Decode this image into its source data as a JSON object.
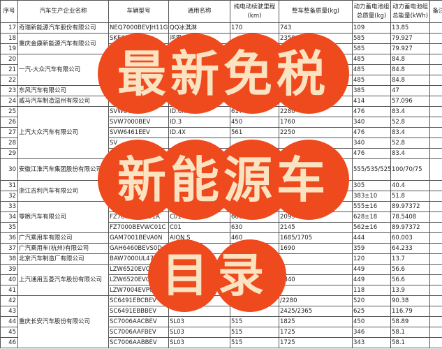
{
  "headers": [
    "序号",
    "汽车生产企业名称",
    "车辆型号",
    "通用名称",
    "纯电动续驶里程(km)",
    "整车整备质量(kg)",
    "动力蓄电池组总质量(kg)",
    "动力蓄电池组总能量(kWh)",
    "备注"
  ],
  "companies": [
    {
      "name": "奇瑞新能源汽车股份有限公司",
      "rows": [
        [
          "17",
          "NEQ7000BEVJH11G",
          "QQ冰淇淋",
          "170",
          "743",
          "109",
          "13.85"
        ]
      ]
    },
    {
      "name": "重庆金康新能源汽车有限公司",
      "rows": [
        [
          "18",
          "SKE6",
          "问界",
          "",
          "2350",
          "585",
          "79.927"
        ],
        [
          "19",
          "",
          "",
          "",
          "",
          "585",
          "79.927"
        ]
      ]
    },
    {
      "name": "一汽-大众汽车有限公司",
      "rows": [
        [
          "20",
          "",
          "",
          "",
          "",
          "485",
          "84.8"
        ],
        [
          "21",
          "",
          "",
          "",
          "",
          "485",
          "84.8"
        ],
        [
          "22",
          "",
          "",
          "",
          "",
          "485",
          "84.8"
        ]
      ]
    },
    {
      "name": "东风汽车有限公司",
      "rows": [
        [
          "23",
          "",
          "",
          "",
          "",
          "385",
          "47"
        ]
      ]
    },
    {
      "name": "威马汽车制造温州有限公司",
      "rows": [
        [
          "24",
          "S",
          "",
          "",
          "",
          "414",
          "57.096"
        ]
      ]
    },
    {
      "name": "上汽大众汽车有限公司",
      "rows": [
        [
          "25",
          "SVW6471",
          "ID.6X",
          "617",
          "2280",
          "476",
          "83.4"
        ],
        [
          "26",
          "SVW7000BEV",
          "ID.3",
          "450",
          "1760",
          "340",
          "52.8"
        ],
        [
          "27",
          "SVW6461EEV",
          "ID.4X",
          "561",
          "2250",
          "476",
          "83.4"
        ],
        [
          "28",
          "SV",
          "",
          "",
          "",
          "340",
          "52.8"
        ],
        [
          "29",
          "",
          "",
          "",
          "",
          "476",
          "83.4"
        ]
      ]
    },
    {
      "name": "安徽江淮汽车集团股份有限公司",
      "tall": true,
      "rows": [
        [
          "30",
          "",
          "",
          "",
          "",
          "555/535/525",
          "100/70/75"
        ]
      ]
    },
    {
      "name": "浙江吉利汽车有限公司",
      "rows": [
        [
          "31",
          "",
          "",
          "",
          "",
          "305",
          "40.4"
        ],
        [
          "32",
          "",
          "",
          "",
          "",
          "383±10",
          "51.8"
        ]
      ]
    },
    {
      "name": "零跑汽车有限公司",
      "rows": [
        [
          "33",
          "FZ",
          "",
          "",
          "",
          "555±16",
          "89.97372"
        ],
        [
          "34",
          "FZ7000BEVC01A",
          "C01",
          "606",
          "2099",
          "628±18",
          "78.5408"
        ],
        [
          "35",
          "FZ7000BEVWC01C",
          "C01",
          "630",
          "2145",
          "562±16",
          "89.97372"
        ]
      ]
    },
    {
      "name": "广汽乘用车有限公司",
      "rows": [
        [
          "36",
          "GAM7001BEVA0N",
          "AION S",
          "460",
          "1685/1705",
          "444",
          "60.003"
        ]
      ]
    },
    {
      "name": "广汽乘用车(杭州)有限公司",
      "rows": [
        [
          "37",
          "GAH6460BEVS0D",
          "",
          "",
          "1690",
          "359",
          "64.233"
        ]
      ]
    },
    {
      "name": "北京汽车制造厂有限公司",
      "rows": [
        [
          "38",
          "BAW7000UL47B",
          "",
          "",
          "",
          "120",
          "13.7"
        ]
      ]
    },
    {
      "name": "上汽通用五菱汽车股份有限公司",
      "rows": [
        [
          "39",
          "LZW6520EVC7E",
          "",
          "",
          "",
          "449",
          "56.6"
        ],
        [
          "40",
          "LZW6520EVC7",
          "",
          "",
          "1840",
          "449",
          "56.6"
        ],
        [
          "41",
          "LZW7004EVPUA",
          "",
          "",
          "",
          "118",
          "13.9"
        ]
      ]
    },
    {
      "name": "重庆长安汽车股份有限公司",
      "rows": [
        [
          "42",
          "SC6491EBCBEV",
          "",
          "",
          "/2280",
          "520",
          "90.38"
        ],
        [
          "43",
          "SC6491EBBBEV",
          "",
          "",
          "2425/2365",
          "625",
          "116.79"
        ],
        [
          "44",
          "SC7006AACBEV",
          "SL03",
          "515",
          "1825",
          "450",
          "58.89"
        ],
        [
          "45",
          "SC7006AAFBEV",
          "SL03",
          "515",
          "1725",
          "346",
          "58.1"
        ],
        [
          "46",
          "SC7006AABBEV",
          "SL03",
          "515",
          "1725",
          "343",
          "58.1"
        ]
      ]
    }
  ],
  "overlay": {
    "line1": "最新免税",
    "line2": "新能源车",
    "line3": "目录",
    "bubble_color": "#ef4a1e",
    "text_color": "#fbe3c1"
  }
}
